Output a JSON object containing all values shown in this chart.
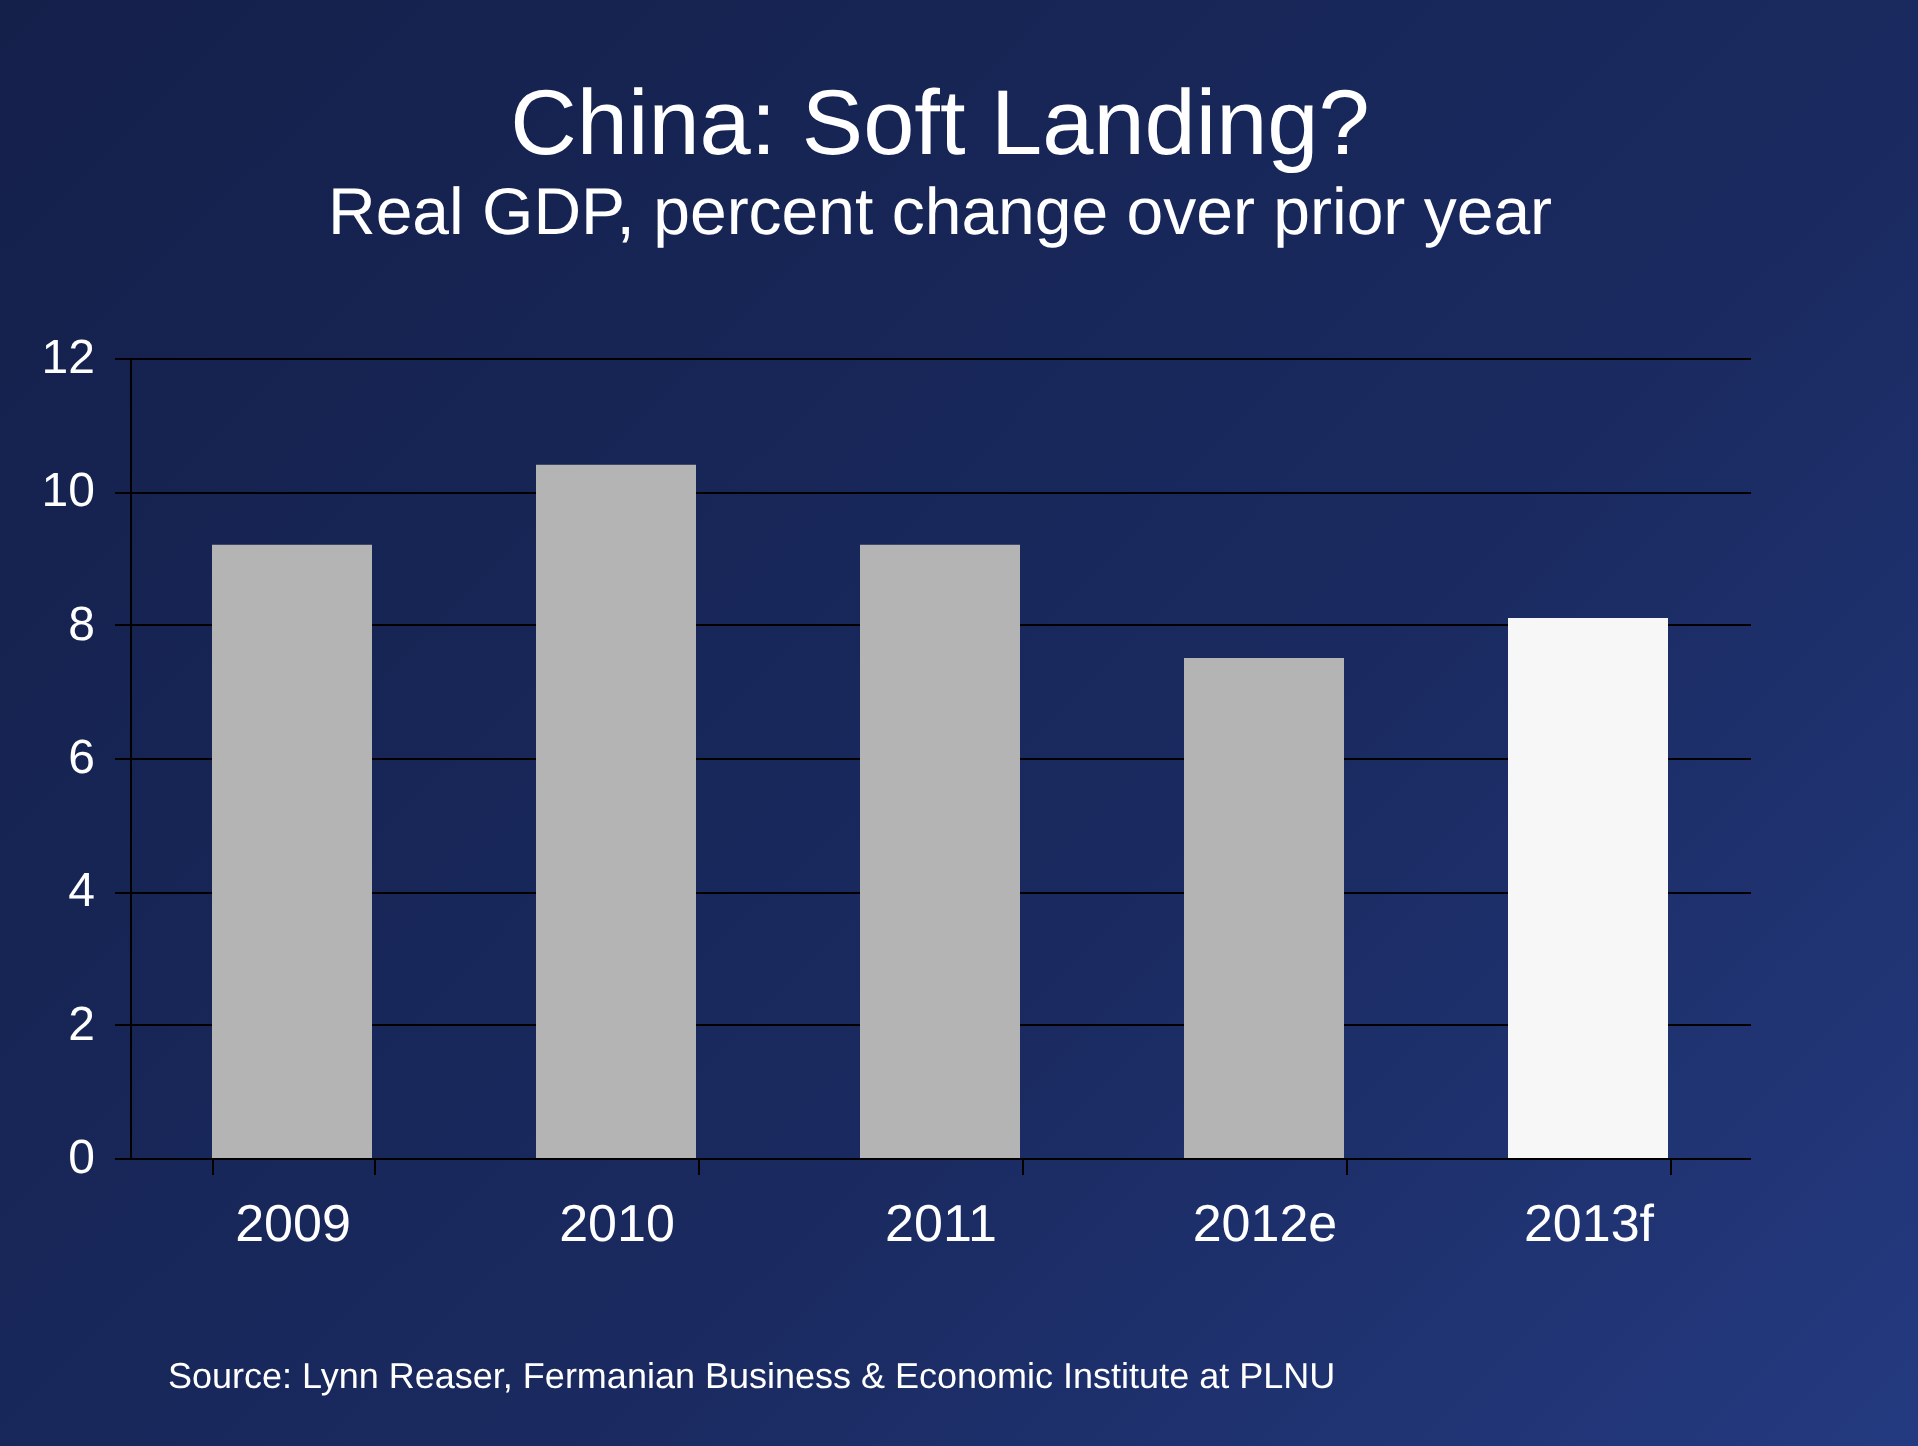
{
  "chart_data": {
    "type": "bar",
    "title": "China: Soft Landing?",
    "subtitle": "Real GDP, percent change over prior year",
    "categories": [
      "2009",
      "2010",
      "2011",
      "2012e",
      "2013f"
    ],
    "values": [
      9.2,
      10.4,
      9.2,
      7.5,
      8.1
    ],
    "colors": [
      "#b4b4b4",
      "#b4b4b4",
      "#b4b4b4",
      "#b4b4b4",
      "#f7f7f7"
    ],
    "ylim": [
      0,
      12
    ],
    "yticks": [
      0,
      2,
      4,
      6,
      8,
      10,
      12
    ],
    "grid": "y",
    "annotations": [
      "Source: Lynn Reaser, Fermanian Business & Economic Institute at PLNU"
    ]
  }
}
